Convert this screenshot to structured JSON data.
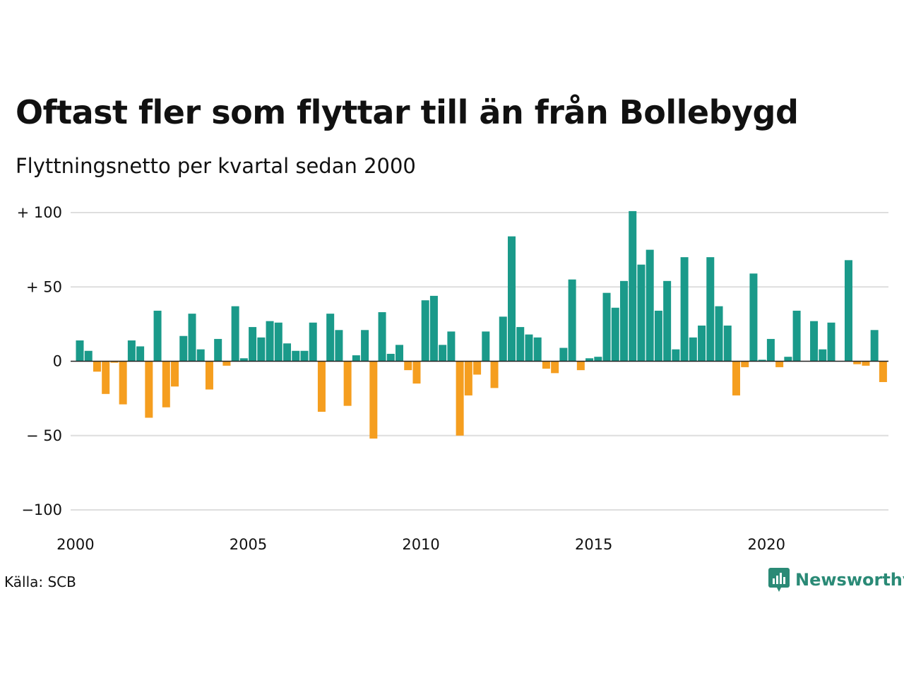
{
  "title": "Oftast fler som flyttar till än från Bollebygd",
  "subtitle": "Flyttningsnetto per kvartal sedan 2000",
  "source": "Källa: SCB",
  "brand": "Newsworthy",
  "colors": {
    "positive": "#1a9a8a",
    "negative": "#f59e1f",
    "grid": "#dedede",
    "zero_line": "#222222",
    "brand": "#2a8a76"
  },
  "chart_data": {
    "type": "bar",
    "x_ticks": [
      {
        "label": "2000",
        "value": 2000
      },
      {
        "label": "2005",
        "value": 2005
      },
      {
        "label": "2010",
        "value": 2010
      },
      {
        "label": "2015",
        "value": 2015
      },
      {
        "label": "2020",
        "value": 2020
      }
    ],
    "y_ticks": [
      {
        "label": "+ 100",
        "value": 100
      },
      {
        "label": "+  50",
        "value": 50
      },
      {
        "label": "0",
        "value": 0
      },
      {
        "label": "− 50",
        "value": -50
      },
      {
        "label": "−100",
        "value": -100
      }
    ],
    "ylim": [
      -100,
      100
    ],
    "grid": true,
    "start_year": 2000,
    "values": [
      14,
      7,
      -7,
      -22,
      -1,
      -29,
      14,
      10,
      -38,
      34,
      -31,
      -17,
      17,
      32,
      8,
      -19,
      15,
      -3,
      37,
      2,
      23,
      16,
      27,
      26,
      12,
      7,
      7,
      26,
      -34,
      32,
      21,
      -30,
      4,
      21,
      -52,
      33,
      5,
      11,
      -6,
      -15,
      41,
      44,
      11,
      20,
      -50,
      -23,
      -9,
      20,
      -18,
      30,
      84,
      23,
      18,
      16,
      -5,
      -8,
      9,
      55,
      -6,
      2,
      3,
      46,
      36,
      54,
      101,
      65,
      75,
      34,
      54,
      8,
      70,
      16,
      24,
      70,
      37,
      24,
      -23,
      -4,
      59,
      1,
      15,
      -4,
      3,
      34,
      0,
      27,
      8,
      26,
      0,
      68,
      -2,
      -3,
      21,
      -14
    ]
  }
}
